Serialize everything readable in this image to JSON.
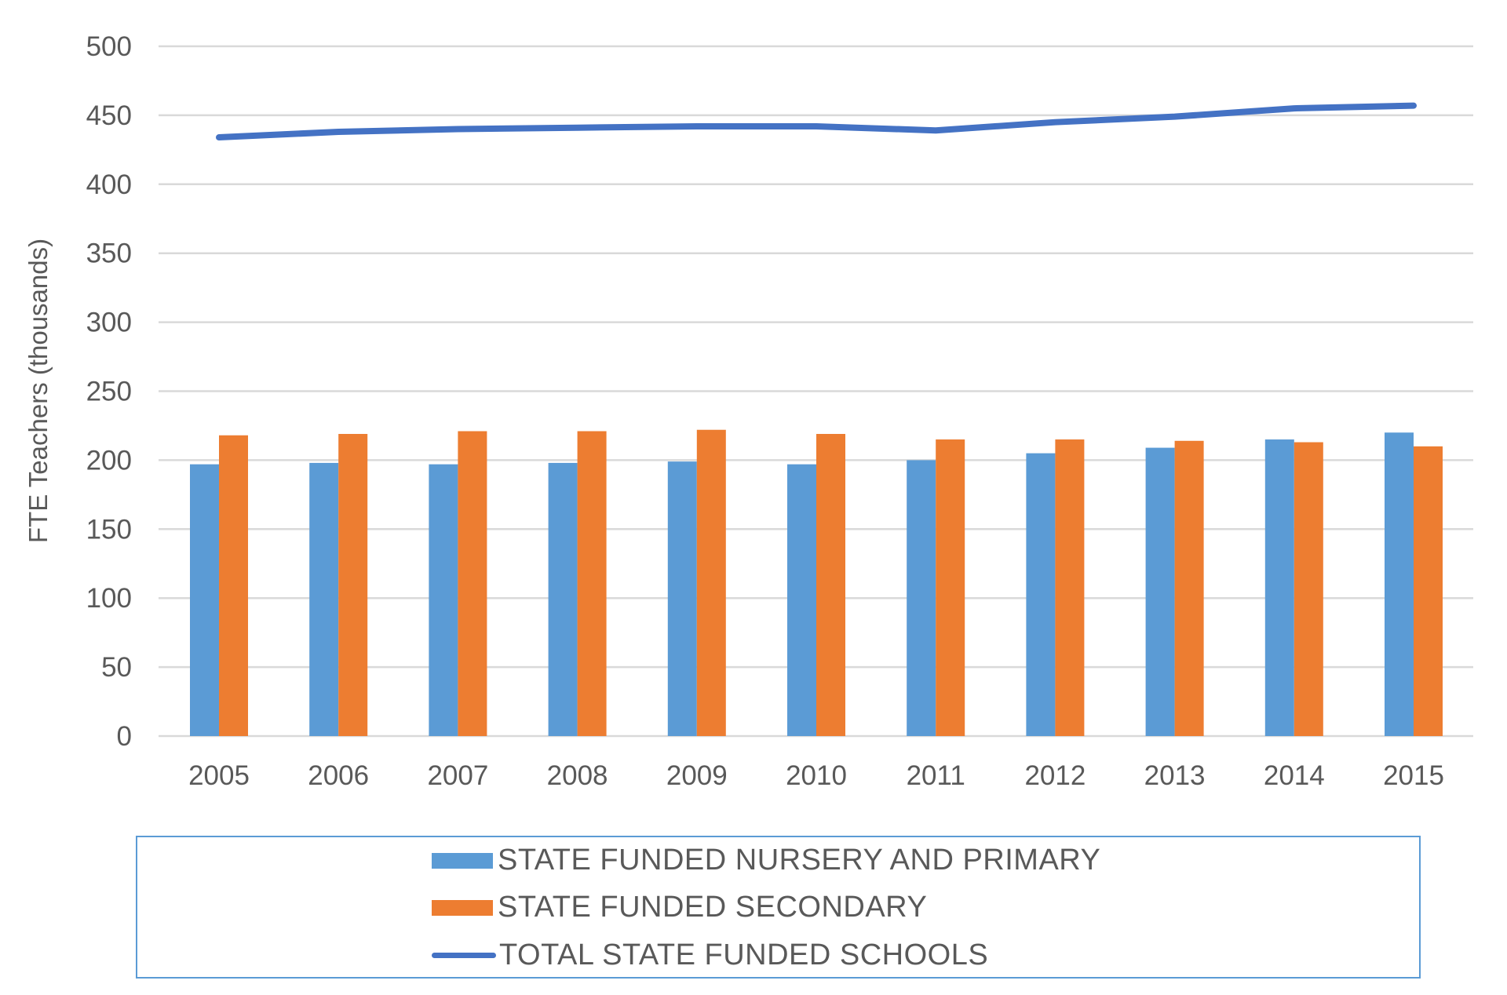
{
  "chart_data": {
    "type": "bar",
    "title": "",
    "xlabel": "",
    "ylabel": "FTE Teachers (thousands)",
    "ylim": [
      0,
      500
    ],
    "yticks": [
      0,
      50,
      100,
      150,
      200,
      250,
      300,
      350,
      400,
      450,
      500
    ],
    "grid": true,
    "legend_position": "bottom",
    "categories": [
      "2005",
      "2006",
      "2007",
      "2008",
      "2009",
      "2010",
      "2011",
      "2012",
      "2013",
      "2014",
      "2015"
    ],
    "series": [
      {
        "name": "STATE FUNDED NURSERY AND PRIMARY",
        "kind": "bar",
        "color": "#5b9bd5",
        "values": [
          197,
          198,
          197,
          198,
          199,
          197,
          200,
          205,
          209,
          215,
          220
        ]
      },
      {
        "name": "STATE FUNDED SECONDARY",
        "kind": "bar",
        "color": "#ed7d31",
        "values": [
          218,
          219,
          221,
          221,
          222,
          219,
          215,
          215,
          214,
          213,
          210
        ]
      },
      {
        "name": "TOTAL STATE FUNDED SCHOOLS",
        "kind": "line",
        "color": "#4472c4",
        "values": [
          434,
          438,
          440,
          441,
          442,
          442,
          439,
          445,
          449,
          455,
          457
        ]
      }
    ]
  }
}
